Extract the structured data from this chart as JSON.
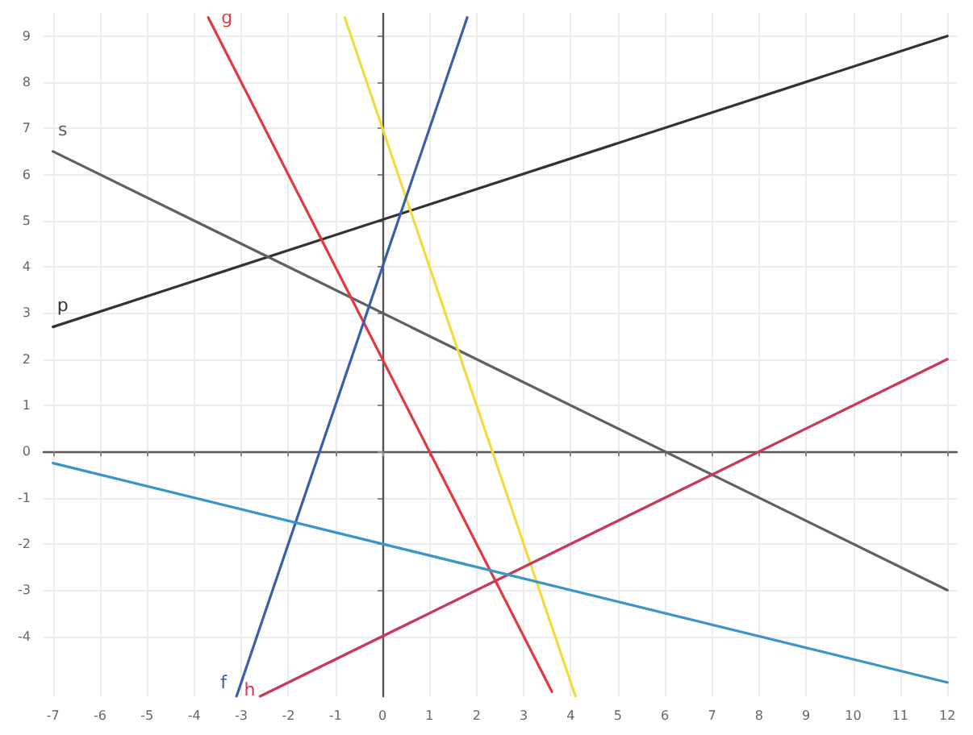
{
  "chart_data": {
    "type": "line",
    "xlim": [
      -7.2,
      12.2
    ],
    "ylim": [
      -5.3,
      9.5
    ],
    "xticks": [
      -7,
      -6,
      -5,
      -4,
      -3,
      -2,
      -1,
      0,
      1,
      2,
      3,
      4,
      5,
      6,
      7,
      8,
      9,
      10,
      11,
      12
    ],
    "yticks": [
      -4,
      -3,
      -2,
      -1,
      0,
      1,
      2,
      3,
      4,
      5,
      6,
      7,
      8,
      9
    ],
    "grid": true,
    "marker": "none",
    "line_style": "solid",
    "series": [
      {
        "name": "p",
        "color": "#333333",
        "x": [
          -7,
          12
        ],
        "values": [
          2.7,
          9
        ]
      },
      {
        "name": "s",
        "color": "#606060",
        "x": [
          -7,
          12
        ],
        "values": [
          6.5,
          -3
        ]
      },
      {
        "name": "g",
        "color": "#e0393e",
        "x": [
          -3.7,
          3.6
        ],
        "values": [
          9.4,
          -5.2
        ]
      },
      {
        "color": "#f2dc3c",
        "x": [
          -0.8,
          4.1
        ],
        "values": [
          9.4,
          -5.3
        ]
      },
      {
        "name": "f",
        "color": "#3a5fa8",
        "x": [
          -3.1,
          1.8
        ],
        "values": [
          -5.3,
          9.4
        ]
      },
      {
        "name": "h",
        "color": "#c8385a",
        "x": [
          -2.6,
          12
        ],
        "values": [
          -5.3,
          2
        ]
      },
      {
        "color": "#3a95c8",
        "x": [
          -7,
          12
        ],
        "values": [
          -0.25,
          -5
        ]
      }
    ]
  }
}
